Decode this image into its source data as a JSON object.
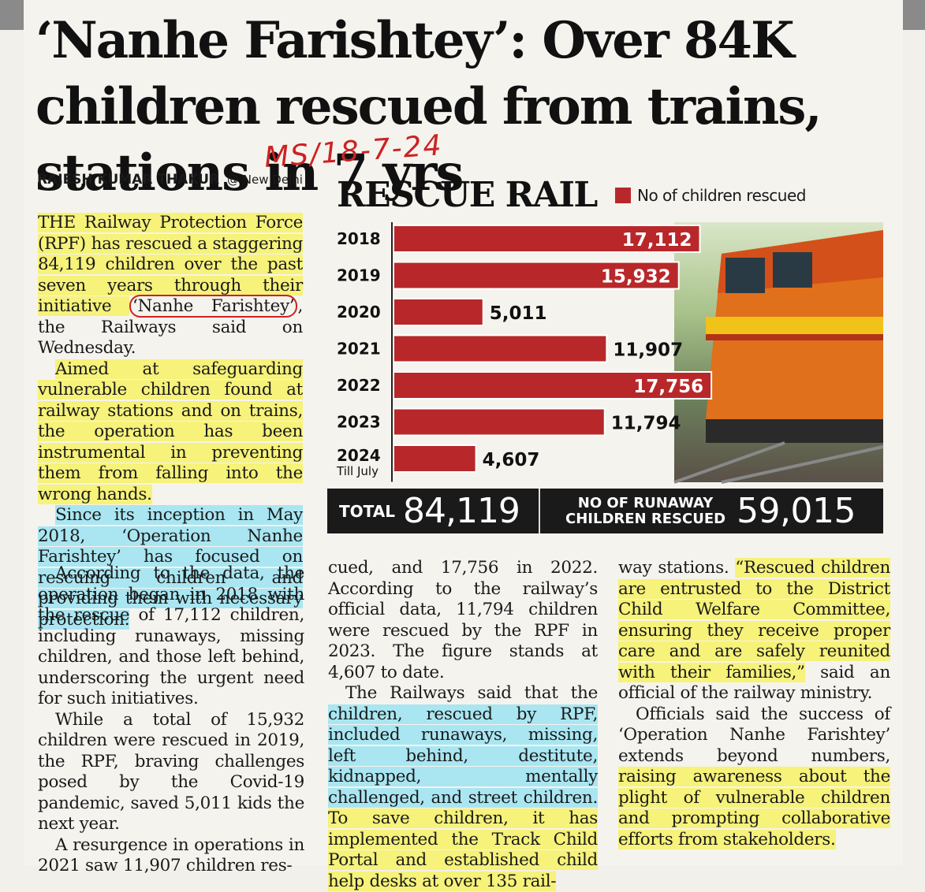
{
  "article": {
    "headline": "‘Nanhe Farishtey’: Over 84K children rescued from trains, stations in 7 yrs",
    "handwritten_note": "MS/18-7-24",
    "byline_author": "RAJESH KUMAR THAKUR",
    "byline_location": "@ New Delhi",
    "para1_a": "THE Railway Protection Force (RPF) has rescued a staggering 84,119 children over the past seven years through their initiative ",
    "para1_circled": "‘Nanhe Farishtey’",
    "para1_b": ", the Railways said on Wednesday.",
    "para2": "Aimed at safeguarding vulnerable children found at railway stations and on trains, the operation has been instrumental in preventing them from falling into the wrong hands.",
    "para3": "Since its inception in May 2018, ‘Operation Nanhe Farishtey’ has focused on rescuing children and providing them with necessary protection.",
    "para4": "According to the data, the operation began in 2018 with the rescue of 17,112 children, including runaways, missing children, and those left behind, underscoring the urgent need for such initiatives.",
    "para5": "While a total of 15,932 children were rescued in 2019, the RPF, braving challenges posed by the Covid-19 pandemic, saved 5,011 kids the next year.",
    "para6": "A resurgence in operations in 2021 saw 11,907 children rescued, and 17,756 in 2022. According to the railway’s official data, 11,794 children were rescued by the RPF in 2023. The figure stands at 4,607 to date.",
    "para7_a": "The Railways said that the ",
    "para7_hl": "children, rescued by RPF, included runaways, missing, left behind, destitute, kidnapped, mentally challenged, and street children.",
    "para7_b": " To save children, it has implemented the Track Child Portal and established child help desks at over 135 railway stations. “Rescued children are entrusted to the District Child Welfare Committee, ensuring they receive proper care and are safely reunited with their families,” said an official of the railway ministry.",
    "para8_a": "Officials said the success of ‘Operation Nanhe Farishtey’ extends beyond numbers, ",
    "para8_hl": "raising awareness about the plight of vulnerable children and prompting collaborative efforts from stakeholders."
  },
  "graphic": {
    "title": "RESCUE RAIL",
    "legend": "No of children rescued",
    "total_label": "TOTAL",
    "total_value": "84,119",
    "runaway_label_1": "NO OF RUNAWAY",
    "runaway_label_2": "CHILDREN RESCUED",
    "runaway_value": "59,015"
  },
  "colors": {
    "bar": "#b8282a",
    "highlight_yellow": "#f6f27a",
    "highlight_blue": "#a9e6f2",
    "ink_red": "#cc2222"
  },
  "chart_data": {
    "type": "bar",
    "orientation": "horizontal",
    "categories": [
      "2018",
      "2019",
      "2020",
      "2021",
      "2022",
      "2023",
      "2024"
    ],
    "category_sublabels": [
      "",
      "",
      "",
      "",
      "",
      "",
      "Till July"
    ],
    "values": [
      17112,
      15932,
      5011,
      11907,
      17756,
      11794,
      4607
    ],
    "value_labels": [
      "17,112",
      "15,932",
      "5,011",
      "11,907",
      "17,756",
      "11,794",
      "4,607"
    ],
    "title": "RESCUE RAIL",
    "series": [
      {
        "name": "No of children rescued"
      }
    ],
    "xlim": [
      0,
      18500
    ],
    "grid": false,
    "legend_position": "top-right"
  }
}
